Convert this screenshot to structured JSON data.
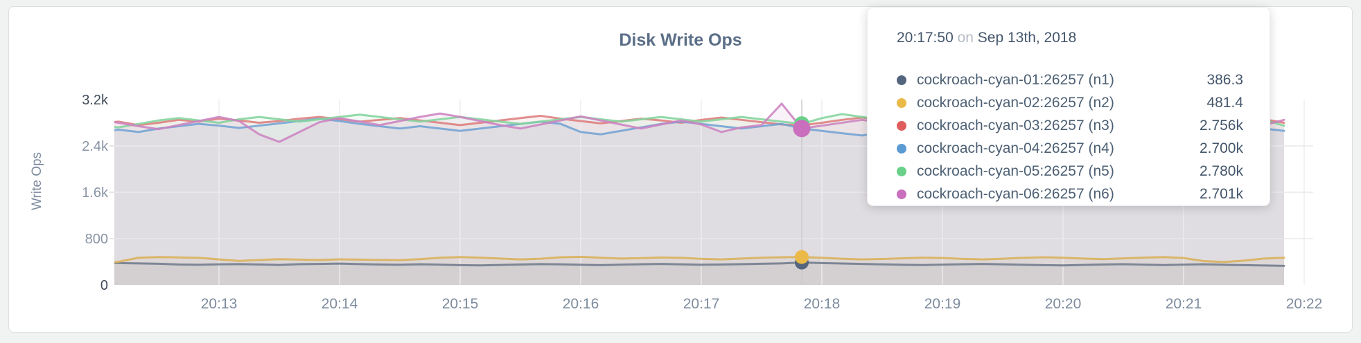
{
  "page": {
    "background": "#f1f2f2"
  },
  "card": {
    "title": "Disk Write Ops"
  },
  "tooltip": {
    "time": "20:17:50",
    "separator": "on",
    "date": "Sep 13th, 2018",
    "rows": [
      {
        "host": "cockroach-cyan-01:26257 (n1)",
        "value": "386.3",
        "color": "#54657e"
      },
      {
        "host": "cockroach-cyan-02:26257 (n2)",
        "value": "481.4",
        "color": "#eab948"
      },
      {
        "host": "cockroach-cyan-03:26257 (n3)",
        "value": "2.756k",
        "color": "#e05d5d"
      },
      {
        "host": "cockroach-cyan-04:26257 (n4)",
        "value": "2.700k",
        "color": "#5b9bd3"
      },
      {
        "host": "cockroach-cyan-05:26257 (n5)",
        "value": "2.780k",
        "color": "#69d189"
      },
      {
        "host": "cockroach-cyan-06:26257 (n6)",
        "value": "2.701k",
        "color": "#c96fbd"
      }
    ]
  },
  "chart_data": {
    "type": "line",
    "title": "Disk Write Ops",
    "ylabel": "Write Ops",
    "ylim": [
      0,
      3200
    ],
    "grid": true,
    "y_ticks": [
      {
        "label": "3.2k",
        "value": 3200
      },
      {
        "label": "2.4k",
        "value": 2400
      },
      {
        "label": "1.6k",
        "value": 1600
      },
      {
        "label": "800",
        "value": 800
      },
      {
        "label": "0",
        "value": 0
      }
    ],
    "x_ticks": [
      "20:13",
      "20:14",
      "20:15",
      "20:16",
      "20:17",
      "20:18",
      "20:19",
      "20:20",
      "20:21",
      "20:22"
    ],
    "time_start": "20:12:00",
    "interval_sec": 10,
    "hover": {
      "time": "20:17:50",
      "index": 35
    },
    "series": [
      {
        "name": "cockroach-cyan-01:26257 (n1)",
        "line_color": "#6f7b8c",
        "dot_color": "#54657e",
        "hover_value": 386.3,
        "values": [
          385,
          378,
          372,
          366,
          352,
          348,
          355,
          360,
          352,
          345,
          358,
          362,
          368,
          360,
          352,
          348,
          356,
          350,
          342,
          338,
          345,
          352,
          360,
          355,
          348,
          342,
          350,
          356,
          362,
          355,
          348,
          352,
          358,
          365,
          372,
          386.3,
          378,
          370,
          362,
          355,
          348,
          344,
          350,
          357,
          362,
          355,
          348,
          342,
          338,
          345,
          352,
          358,
          350,
          344,
          350,
          356,
          348,
          342,
          336,
          330
        ]
      },
      {
        "name": "cockroach-cyan-02:26257 (n2)",
        "line_color": "#d9b159",
        "dot_color": "#eab948",
        "hover_value": 481.4,
        "values": [
          362,
          400,
          470,
          480,
          475,
          468,
          440,
          415,
          430,
          445,
          438,
          430,
          442,
          438,
          432,
          428,
          445,
          470,
          480,
          472,
          455,
          440,
          452,
          478,
          485,
          470,
          455,
          462,
          475,
          468,
          450,
          440,
          455,
          470,
          478,
          481.4,
          468,
          452,
          440,
          448,
          460,
          472,
          465,
          450,
          440,
          452,
          468,
          478,
          470,
          455,
          445,
          458,
          472,
          480,
          465,
          412,
          395,
          420,
          455,
          470
        ]
      },
      {
        "name": "cockroach-cyan-03:26257 (n3)",
        "line_color": "#de7c7c",
        "dot_color": "#e05d5d",
        "hover_value": 2756,
        "values": [
          2790,
          2820,
          2760,
          2800,
          2850,
          2820,
          2870,
          2840,
          2800,
          2830,
          2870,
          2900,
          2860,
          2820,
          2850,
          2880,
          2840,
          2800,
          2760,
          2800,
          2840,
          2880,
          2920,
          2870,
          2830,
          2790,
          2830,
          2870,
          2840,
          2800,
          2850,
          2890,
          2850,
          2810,
          2770,
          2756,
          2800,
          2850,
          2890,
          2850,
          2810,
          2850,
          2890,
          2930,
          2880,
          2840,
          2800,
          2840,
          2880,
          2840,
          2800,
          2840,
          2880,
          2840,
          2800,
          2840,
          2880,
          2940,
          2860,
          2800
        ]
      },
      {
        "name": "cockroach-cyan-04:26257 (n4)",
        "line_color": "#72a3d4",
        "dot_color": "#5b9bd3",
        "hover_value": 2700,
        "values": [
          2650,
          2680,
          2640,
          2700,
          2740,
          2780,
          2750,
          2710,
          2750,
          2790,
          2830,
          2870,
          2830,
          2780,
          2740,
          2700,
          2740,
          2700,
          2660,
          2700,
          2740,
          2780,
          2820,
          2780,
          2640,
          2600,
          2660,
          2720,
          2780,
          2820,
          2780,
          2740,
          2700,
          2740,
          2780,
          2700,
          2660,
          2620,
          2580,
          2640,
          2700,
          2740,
          2780,
          2820,
          2780,
          2740,
          2780,
          2820,
          2860,
          2820,
          2780,
          2740,
          2780,
          2820,
          2780,
          2740,
          2700,
          2740,
          2700,
          2660
        ]
      },
      {
        "name": "cockroach-cyan-05:26257 (n5)",
        "line_color": "#83d49d",
        "dot_color": "#69d189",
        "hover_value": 2780,
        "values": [
          2760,
          2720,
          2780,
          2840,
          2880,
          2840,
          2800,
          2860,
          2900,
          2860,
          2820,
          2860,
          2900,
          2940,
          2900,
          2860,
          2820,
          2860,
          2900,
          2860,
          2820,
          2780,
          2820,
          2860,
          2900,
          2860,
          2820,
          2860,
          2900,
          2860,
          2820,
          2860,
          2900,
          2860,
          2820,
          2780,
          2880,
          2950,
          2900,
          2850,
          2890,
          2930,
          2890,
          2850,
          2890,
          2930,
          2890,
          2850,
          2890,
          2930,
          2890,
          2850,
          2890,
          2930,
          2890,
          2850,
          2890,
          2930,
          2850,
          2750
        ]
      },
      {
        "name": "cockroach-cyan-06:26257 (n6)",
        "line_color": "#cc83c1",
        "dot_color": "#c96fbd",
        "hover_value": 2701,
        "values": [
          2850,
          2800,
          2740,
          2690,
          2760,
          2830,
          2900,
          2830,
          2600,
          2470,
          2640,
          2810,
          2880,
          2820,
          2760,
          2830,
          2900,
          2960,
          2900,
          2830,
          2760,
          2700,
          2770,
          2840,
          2910,
          2840,
          2770,
          2700,
          2770,
          2840,
          2770,
          2640,
          2720,
          2760,
          3130,
          2701,
          2750,
          2800,
          2850,
          2800,
          2740,
          2800,
          2860,
          2800,
          2740,
          2680,
          2740,
          2800,
          2860,
          2800,
          2740,
          2800,
          2870,
          2930,
          2860,
          2790,
          2720,
          2680,
          2760,
          2850
        ]
      }
    ]
  }
}
